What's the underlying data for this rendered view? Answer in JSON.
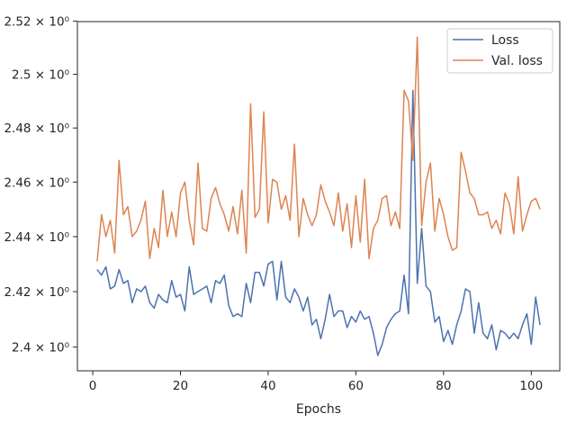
{
  "chart_data": {
    "type": "line",
    "xlabel": "Epochs",
    "ylabel": "",
    "title": "",
    "yscale": "log",
    "xlim": [
      -3.5,
      106.5
    ],
    "ylim": [
      2.3915,
      2.5198
    ],
    "xticks": [
      0,
      20,
      40,
      60,
      80,
      100
    ],
    "xtick_labels": [
      "0",
      "20",
      "40",
      "60",
      "80",
      "100"
    ],
    "yticks": [
      2.4,
      2.42,
      2.44,
      2.46,
      2.48,
      2.5,
      2.52
    ],
    "ytick_labels": [
      "2.4 × 10⁰",
      "2.42 × 10⁰",
      "2.44 × 10⁰",
      "2.46 × 10⁰",
      "2.48 × 10⁰",
      "2.5 × 10⁰",
      "2.52 × 10⁰"
    ],
    "legend_position": "top-right",
    "grid": false,
    "series": [
      {
        "name": "Loss",
        "color": "#4c72b0",
        "x": [
          1,
          2,
          3,
          4,
          5,
          6,
          7,
          8,
          9,
          10,
          11,
          12,
          13,
          14,
          15,
          16,
          17,
          18,
          19,
          20,
          21,
          22,
          23,
          24,
          25,
          26,
          27,
          28,
          29,
          30,
          31,
          32,
          33,
          34,
          35,
          36,
          37,
          38,
          39,
          40,
          41,
          42,
          43,
          44,
          45,
          46,
          47,
          48,
          49,
          50,
          51,
          52,
          53,
          54,
          55,
          56,
          57,
          58,
          59,
          60,
          61,
          62,
          63,
          64,
          65,
          66,
          67,
          68,
          69,
          70,
          71,
          72,
          73,
          74,
          75,
          76,
          77,
          78,
          79,
          80,
          81,
          82,
          83,
          84,
          85,
          86,
          87,
          88,
          89,
          90,
          91,
          92,
          93,
          94,
          95,
          96,
          97,
          98,
          99,
          100,
          101,
          102
        ],
        "values": [
          2.428,
          2.426,
          2.429,
          2.421,
          2.422,
          2.428,
          2.423,
          2.424,
          2.416,
          2.421,
          2.42,
          2.422,
          2.416,
          2.414,
          2.419,
          2.417,
          2.416,
          2.424,
          2.418,
          2.419,
          2.413,
          2.429,
          2.419,
          2.42,
          2.421,
          2.422,
          2.416,
          2.424,
          2.423,
          2.426,
          2.415,
          2.411,
          2.412,
          2.411,
          2.423,
          2.416,
          2.427,
          2.427,
          2.422,
          2.43,
          2.431,
          2.417,
          2.431,
          2.418,
          2.416,
          2.421,
          2.418,
          2.413,
          2.418,
          2.408,
          2.41,
          2.403,
          2.41,
          2.419,
          2.411,
          2.413,
          2.413,
          2.407,
          2.411,
          2.409,
          2.413,
          2.41,
          2.411,
          2.405,
          2.397,
          2.401,
          2.407,
          2.41,
          2.412,
          2.413,
          2.426,
          2.412,
          2.494,
          2.423,
          2.443,
          2.422,
          2.42,
          2.409,
          2.411,
          2.402,
          2.406,
          2.401,
          2.408,
          2.413,
          2.421,
          2.42,
          2.405,
          2.416,
          2.405,
          2.403,
          2.408,
          2.399,
          2.406,
          2.405,
          2.403,
          2.405,
          2.403,
          2.408,
          2.412,
          2.401,
          2.418,
          2.408
        ]
      },
      {
        "name": "Val. loss",
        "color": "#dd8452",
        "x": [
          1,
          2,
          3,
          4,
          5,
          6,
          7,
          8,
          9,
          10,
          11,
          12,
          13,
          14,
          15,
          16,
          17,
          18,
          19,
          20,
          21,
          22,
          23,
          24,
          25,
          26,
          27,
          28,
          29,
          30,
          31,
          32,
          33,
          34,
          35,
          36,
          37,
          38,
          39,
          40,
          41,
          42,
          43,
          44,
          45,
          46,
          47,
          48,
          49,
          50,
          51,
          52,
          53,
          54,
          55,
          56,
          57,
          58,
          59,
          60,
          61,
          62,
          63,
          64,
          65,
          66,
          67,
          68,
          69,
          70,
          71,
          72,
          73,
          74,
          75,
          76,
          77,
          78,
          79,
          80,
          81,
          82,
          83,
          84,
          85,
          86,
          87,
          88,
          89,
          90,
          91,
          92,
          93,
          94,
          95,
          96,
          97,
          98,
          99,
          100,
          101,
          102
        ],
        "values": [
          2.431,
          2.448,
          2.44,
          2.446,
          2.434,
          2.468,
          2.448,
          2.451,
          2.44,
          2.442,
          2.446,
          2.453,
          2.432,
          2.443,
          2.436,
          2.457,
          2.44,
          2.449,
          2.44,
          2.456,
          2.46,
          2.446,
          2.437,
          2.467,
          2.443,
          2.442,
          2.454,
          2.458,
          2.452,
          2.448,
          2.442,
          2.451,
          2.441,
          2.457,
          2.434,
          2.489,
          2.447,
          2.45,
          2.486,
          2.445,
          2.461,
          2.46,
          2.45,
          2.455,
          2.446,
          2.474,
          2.44,
          2.454,
          2.448,
          2.444,
          2.448,
          2.459,
          2.453,
          2.449,
          2.444,
          2.456,
          2.442,
          2.452,
          2.436,
          2.455,
          2.438,
          2.461,
          2.432,
          2.443,
          2.446,
          2.454,
          2.455,
          2.444,
          2.449,
          2.443,
          2.494,
          2.49,
          2.468,
          2.514,
          2.444,
          2.46,
          2.467,
          2.442,
          2.454,
          2.448,
          2.44,
          2.435,
          2.436,
          2.471,
          2.464,
          2.456,
          2.454,
          2.448,
          2.448,
          2.449,
          2.443,
          2.446,
          2.441,
          2.456,
          2.452,
          2.441,
          2.462,
          2.442,
          2.448,
          2.453,
          2.454,
          2.45
        ]
      }
    ]
  }
}
